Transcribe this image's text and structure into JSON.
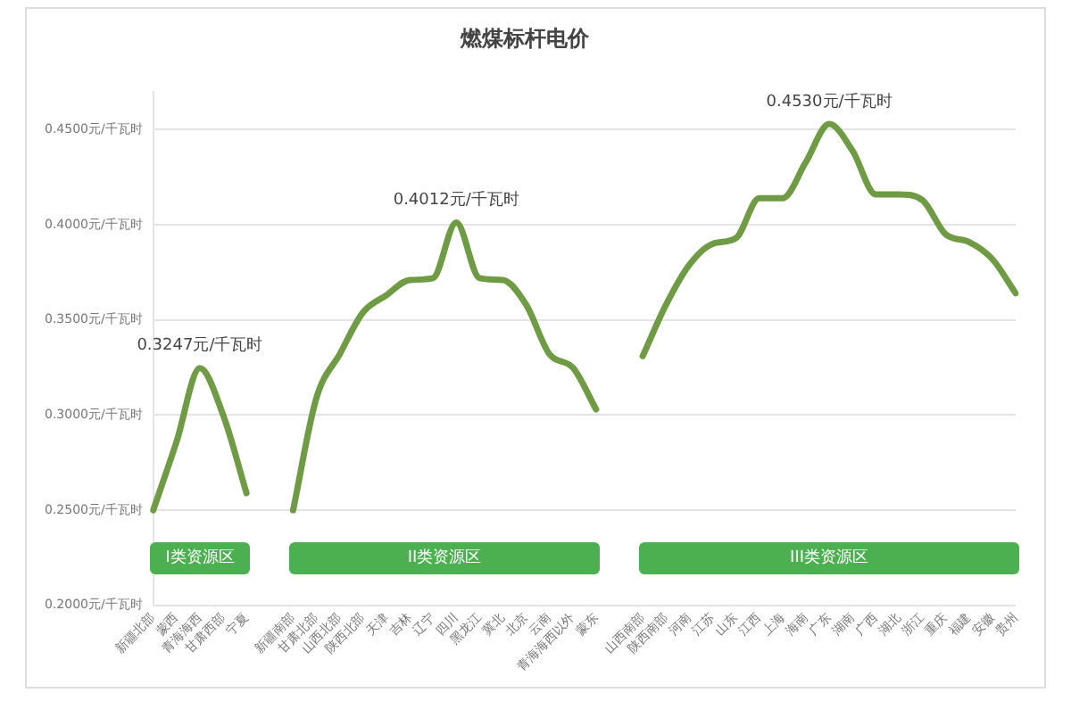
{
  "chart_data": {
    "type": "line",
    "title": "燃煤标杆电价",
    "categories": [
      "新疆北部",
      "蒙西",
      "青海海西",
      "甘肃西部",
      "宁夏",
      null,
      "新疆南部",
      "甘肃北部",
      "山西北部",
      "陕西北部",
      "天津",
      "吉林",
      "辽宁",
      "四川",
      "黑龙江",
      "冀北",
      "北京",
      "云南",
      "青海海西以外",
      "蒙东",
      null,
      "山西南部",
      "陕西南部",
      "河南",
      "江苏",
      "山东",
      "江西",
      "上海",
      "海南",
      "广东",
      "湖南",
      "广西",
      "湖北",
      "浙江",
      "重庆",
      "福建",
      "安徽",
      "贵州"
    ],
    "series": [
      {
        "color": "#6f9b45",
        "values": [
          0.25,
          0.286,
          0.3247,
          0.3,
          0.259,
          null,
          0.25,
          0.309,
          0.332,
          0.354,
          0.363,
          0.371,
          0.372,
          0.4012,
          0.372,
          0.371,
          0.358,
          0.332,
          0.325,
          0.303,
          null,
          0.331,
          0.358,
          0.379,
          0.39,
          0.393,
          0.414,
          0.414,
          0.433,
          0.453,
          0.439,
          0.416,
          0.416,
          0.413,
          0.395,
          0.391,
          0.382,
          0.364
        ],
        "value_labels": [
          null,
          null,
          "0.3247元/千瓦时",
          null,
          null,
          null,
          null,
          null,
          null,
          null,
          null,
          null,
          null,
          "0.4012元/千瓦时",
          null,
          null,
          null,
          null,
          null,
          null,
          null,
          null,
          null,
          null,
          null,
          null,
          null,
          null,
          null,
          "0.4530元/千瓦时",
          null,
          null,
          null,
          null,
          null,
          null,
          null,
          null
        ]
      }
    ],
    "ylim": [
      0.2,
      0.47
    ],
    "yticks": [
      {
        "value": 0.2,
        "label": "0.2000元/千瓦时"
      },
      {
        "value": 0.25,
        "label": "0.2500元/千瓦时"
      },
      {
        "value": 0.3,
        "label": "0.3000元/千瓦时"
      },
      {
        "value": 0.35,
        "label": "0.3500元/千瓦时"
      },
      {
        "value": 0.4,
        "label": "0.4000元/千瓦时"
      },
      {
        "value": 0.45,
        "label": "0.4500元/千瓦时"
      }
    ],
    "annotations": [
      "I类资源区",
      "II类资源区",
      "III类资源区"
    ],
    "grid": "y",
    "legend": false,
    "marker": "none",
    "line_style": "solid"
  }
}
